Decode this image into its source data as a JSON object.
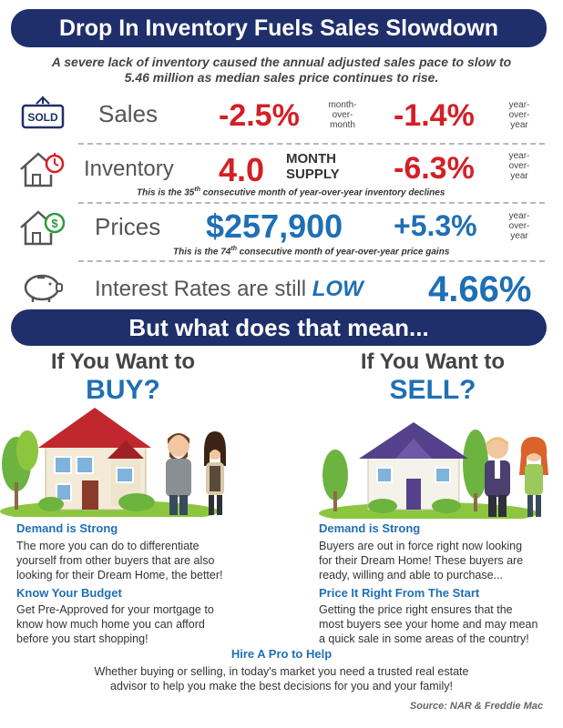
{
  "header": {
    "title": "Drop In Inventory Fuels Sales Slowdown",
    "subtitle_line1": "A severe lack of inventory caused the annual adjusted sales pace to slow to",
    "subtitle_line2": "5.46 million as median sales price continues to rise."
  },
  "stats": {
    "sales": {
      "label": "Sales",
      "month_value": "-2.5%",
      "month_caption": [
        "month-",
        "over-",
        "month"
      ],
      "year_value": "-1.4%",
      "year_caption": [
        "year-",
        "over-",
        "year"
      ]
    },
    "inventory": {
      "label": "Inventory",
      "value": "4.0",
      "unit_line1": "MONTH",
      "unit_line2": "SUPPLY",
      "year_value": "-6.3%",
      "year_caption": [
        "year-",
        "over-",
        "year"
      ],
      "note_pre": "This is the 35",
      "note_sup": "th",
      "note_post": " consecutive month of year-over-year inventory declines"
    },
    "prices": {
      "label": "Prices",
      "value": "$257,900",
      "change": "+5.3%",
      "year_caption": [
        "year-",
        "over-",
        "year"
      ],
      "note_pre": "This is the 74",
      "note_sup": "th",
      "note_post": " consecutive month of year-over-year price gains"
    },
    "rates": {
      "label": "Interest Rates are still ",
      "emphasis": "LOW",
      "value": "4.66%"
    }
  },
  "mid_banner": "But what does that mean...",
  "buy": {
    "heading_line1": "If You Want to",
    "heading_line2": "BUY?",
    "sections": [
      {
        "title": "Demand is Strong",
        "lines": [
          "The more you can do to differentiate",
          "yourself from other buyers that are also",
          "looking for their Dream Home, the better!"
        ]
      },
      {
        "title": "Know Your Budget",
        "lines": [
          "Get Pre-Approved for your mortgage to",
          "know how much home you can afford",
          "before you start shopping!"
        ]
      }
    ]
  },
  "sell": {
    "heading_line1": "If You Want to",
    "heading_line2": "SELL?",
    "sections": [
      {
        "title": "Demand is Strong",
        "lines": [
          "Buyers are out in force right now looking",
          "for their Dream Home! These buyers are",
          "ready, willing and able to purchase..."
        ]
      },
      {
        "title": "Price It Right From The Start",
        "lines": [
          "Getting the price right ensures that the",
          "most buyers see your home and may mean",
          "a quick sale in some areas of the country!"
        ]
      }
    ]
  },
  "pro": {
    "title": "Hire A Pro to Help",
    "line1": "Whether buying or selling, in today's market you need a trusted real estate",
    "line2": "advisor to help you make the best decisions for you and your family!"
  },
  "source": "Source: NAR & Freddie Mac",
  "icons": {
    "sold_sign": "sold-sign-icon",
    "house_timer": "house-timer-icon",
    "house_dollar": "house-dollar-icon",
    "piggy_bank": "piggy-bank-icon"
  },
  "colors": {
    "navy": "#1f2f6b",
    "red": "#d32027",
    "blue": "#1f6fb5"
  }
}
